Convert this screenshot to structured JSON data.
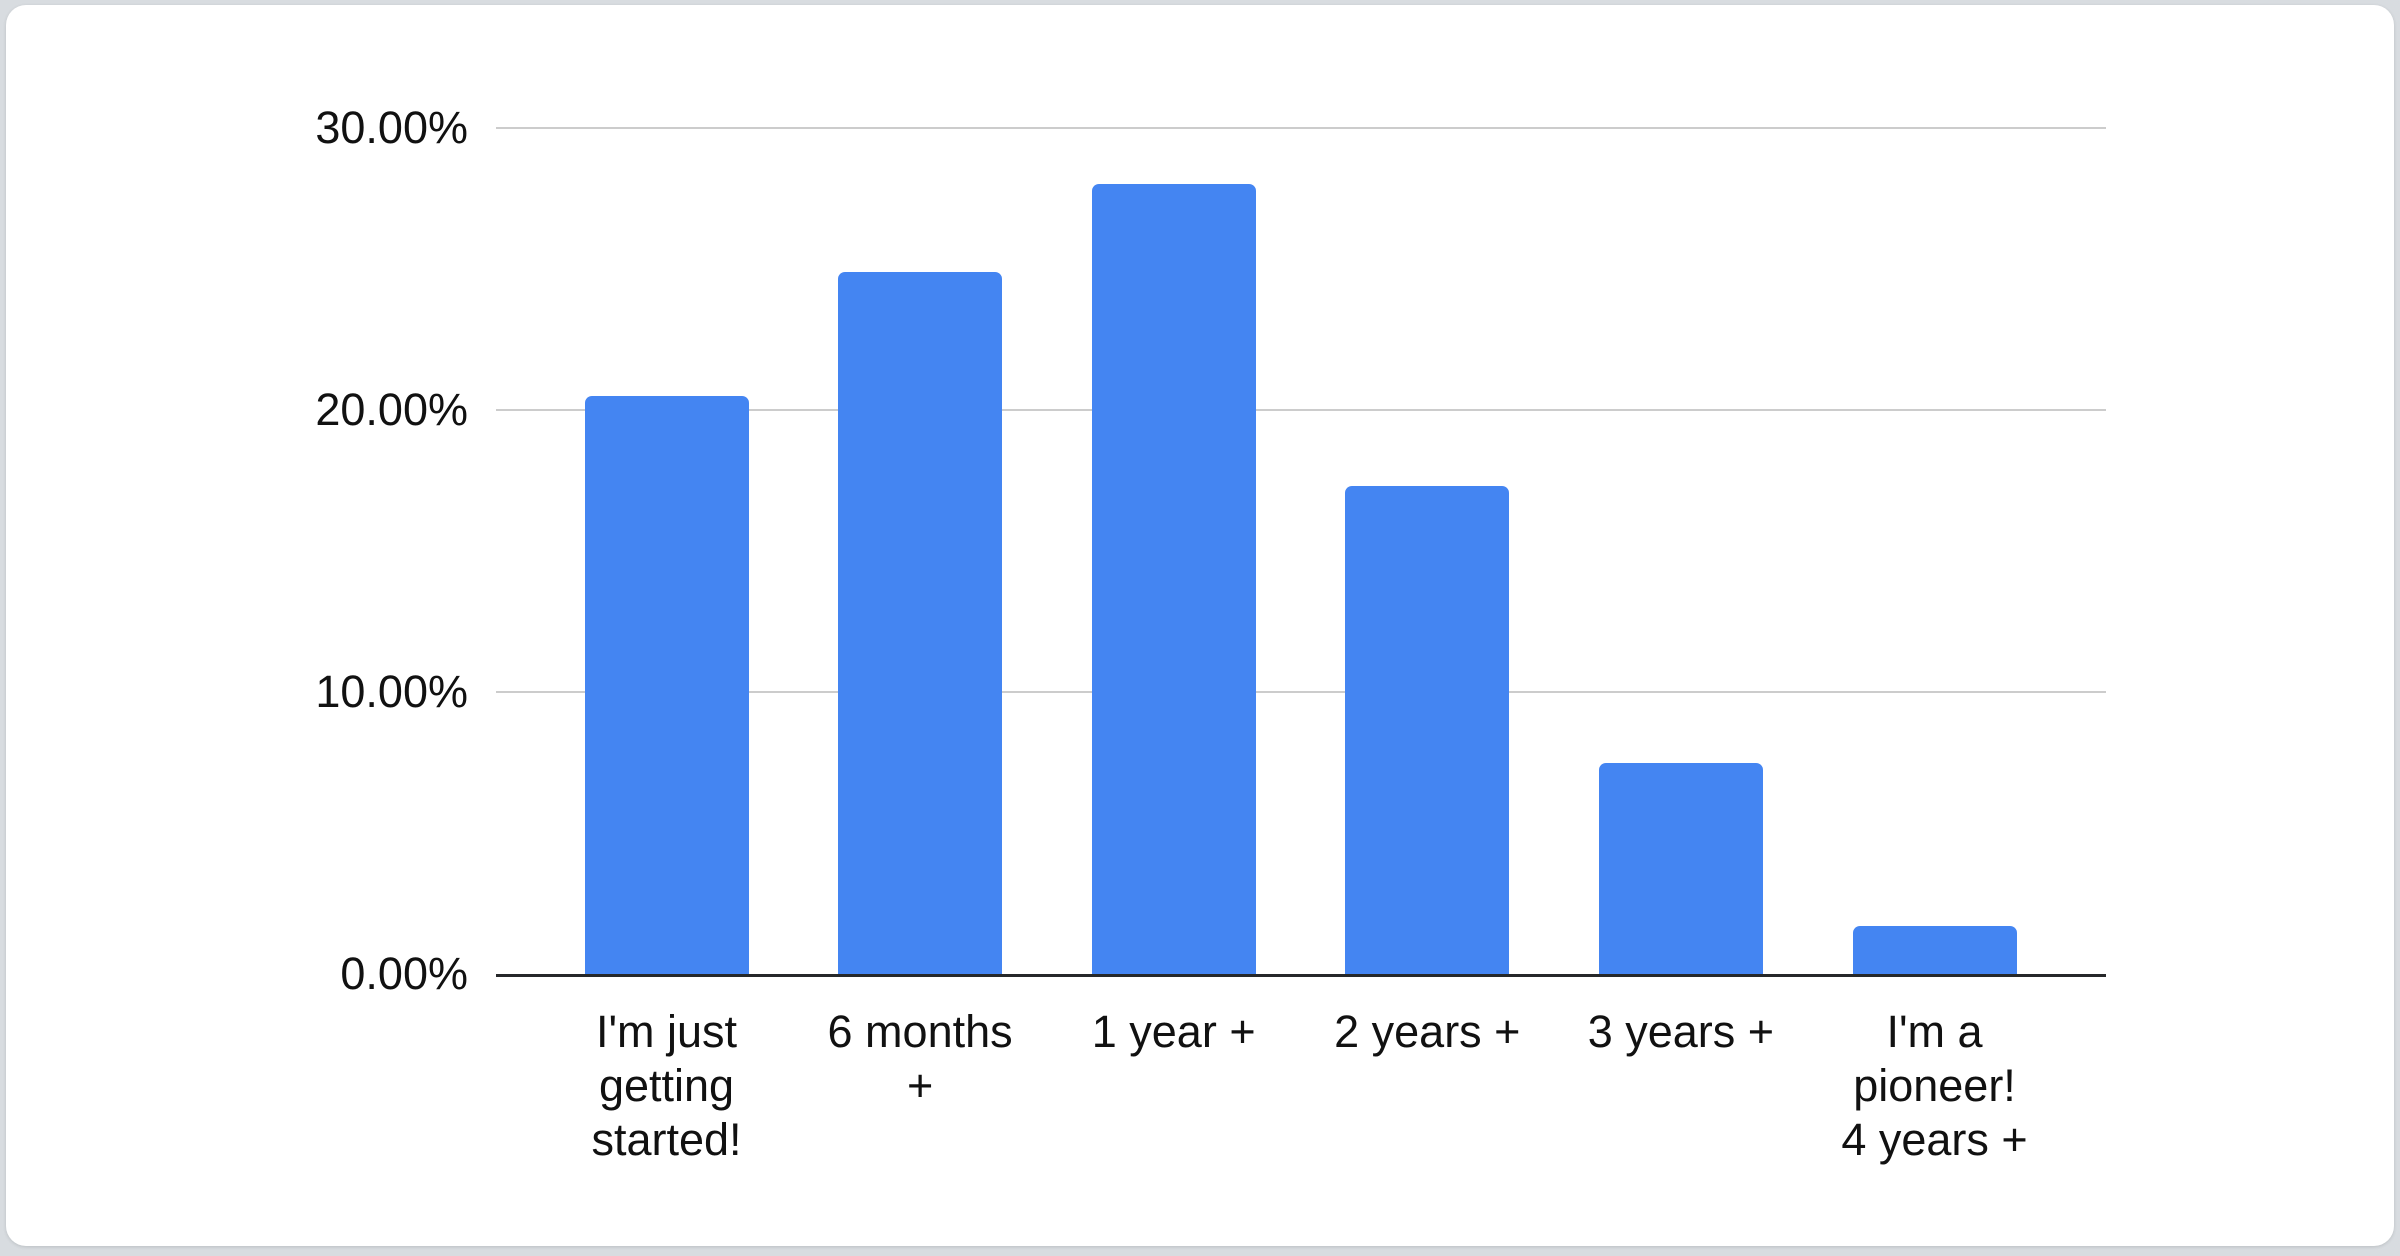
{
  "page": {
    "background_color": "#d8dce0",
    "card_background_color": "#ffffff"
  },
  "chart_data": {
    "type": "bar",
    "title": "",
    "xlabel": "",
    "ylabel": "",
    "unit": "%",
    "categories": [
      "I'm just getting started!",
      "6 months +",
      "1 year +",
      "2 years +",
      "3 years +",
      "I'm a pioneer! 4 years +"
    ],
    "category_lines": [
      [
        "I'm just",
        "getting",
        "started!"
      ],
      [
        "6 months",
        "+"
      ],
      [
        "1 year +"
      ],
      [
        "2 years +"
      ],
      [
        "3 years +"
      ],
      [
        "I'm a",
        "pioneer!",
        "4 years +"
      ]
    ],
    "values": [
      20.5,
      24.9,
      28.0,
      17.3,
      7.5,
      1.7
    ],
    "ylim": [
      0,
      30
    ],
    "yticks": [
      {
        "label": "30.00%",
        "value": 30
      },
      {
        "label": "20.00%",
        "value": 20
      },
      {
        "label": "10.00%",
        "value": 10
      },
      {
        "label": "0.00%",
        "value": 0
      }
    ],
    "grid": true,
    "legend_position": "none",
    "bar_color": "#4485f2",
    "gridline_color": "#cccccc",
    "axis_color": "#26282a",
    "label_color": "#111111"
  }
}
